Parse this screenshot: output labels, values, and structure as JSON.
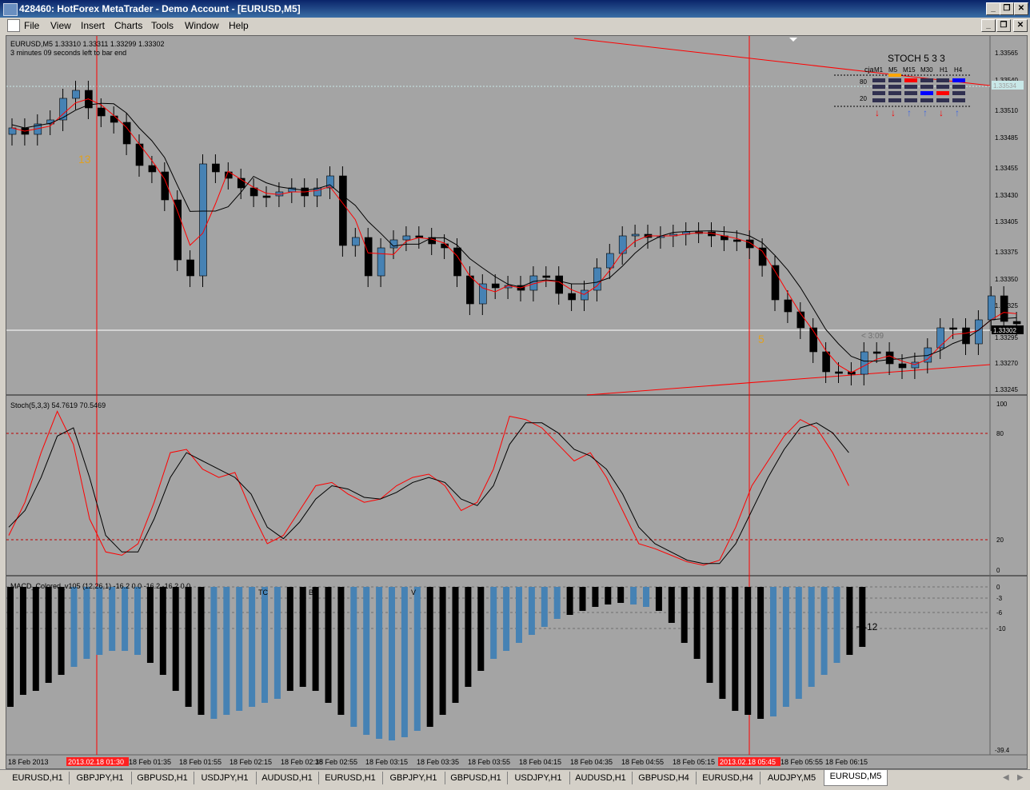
{
  "window": {
    "title": "428460: HotForex MetaTrader - Demo Account - [EURUSD,M5]",
    "min": "_",
    "max": "❐",
    "close": "✕"
  },
  "menu": [
    "File",
    "View",
    "Insert",
    "Charts",
    "Tools",
    "Window",
    "Help"
  ],
  "chart": {
    "info_line1": "EURUSD,M5  1.33310 1.33311 1.33299 1.33302",
    "info_line2": "3 minutes 09 seconds left to bar end",
    "price_scale": [
      "1.33565",
      "1.33540",
      "1.33510",
      "1.33485",
      "1.33455",
      "1.33430",
      "1.33405",
      "1.33375",
      "1.33350",
      "1.33325",
      "1.33295",
      "1.33270",
      "1.33245"
    ],
    "bid_label": "1.33302",
    "ask_label": "1.33534",
    "timer_label": "< 3:09",
    "count_13": "13",
    "count_5": "5",
    "stoch_panel": {
      "title": "STOCH  5 3 3",
      "left_label": "cja",
      "timeframes": [
        "M1",
        "M5",
        "M15",
        "M30",
        "H1",
        "H4"
      ],
      "level_80": "80",
      "level_20": "20",
      "arrows": [
        "↓",
        "↓",
        "↑",
        "↑",
        "↓",
        "↑"
      ]
    }
  },
  "stoch_indicator": {
    "label": "Stoch(5,3,3) 54.7619 70.5469",
    "scale": [
      "100",
      "80",
      "20",
      "0"
    ]
  },
  "macd_indicator": {
    "label": "MACD_Colored_v105 (12,26,1) -16.2 0.0 -16.2 -16.2 0.0",
    "scale": [
      "0",
      "-3",
      "-6",
      "-10",
      "-39.4"
    ],
    "current_label": "-12",
    "marker_tc": "TC",
    "marker_b": "B",
    "marker_v1": "V",
    "marker_v2": "V"
  },
  "time_axis": {
    "labels": [
      "18 Feb 2013",
      "18 Feb 01:35",
      "18 Feb 01:55",
      "18 Feb 02:15",
      "18 Feb 02:35",
      "18 Feb 02:55",
      "18 Feb 03:15",
      "18 Feb 03:35",
      "18 Feb 03:55",
      "18 Feb 04:15",
      "18 Feb 04:35",
      "18 Feb 04:55",
      "18 Feb 05:15",
      "18 Feb 05:55",
      "18 Feb 06:15"
    ],
    "highlight_1": "2013.02.18 01:30",
    "highlight_2": "2013.02.18 05:45"
  },
  "tabs": [
    "EURUSD,H1",
    "GBPJPY,H1",
    "GBPUSD,H1",
    "USDJPY,H1",
    "AUDUSD,H1",
    "EURUSD,H1",
    "GBPJPY,H1",
    "GBPUSD,H1",
    "USDJPY,H1",
    "AUDUSD,H1",
    "GBPUSD,H4",
    "EURUSD,H4",
    "AUDJPY,M5",
    "EURUSD,M5"
  ],
  "active_tab": "EURUSD,M5",
  "colors": {
    "chart_bg": "#a4a4a4",
    "bull": "#4682b4",
    "bear": "#000000",
    "signal": "#ff0000"
  }
}
